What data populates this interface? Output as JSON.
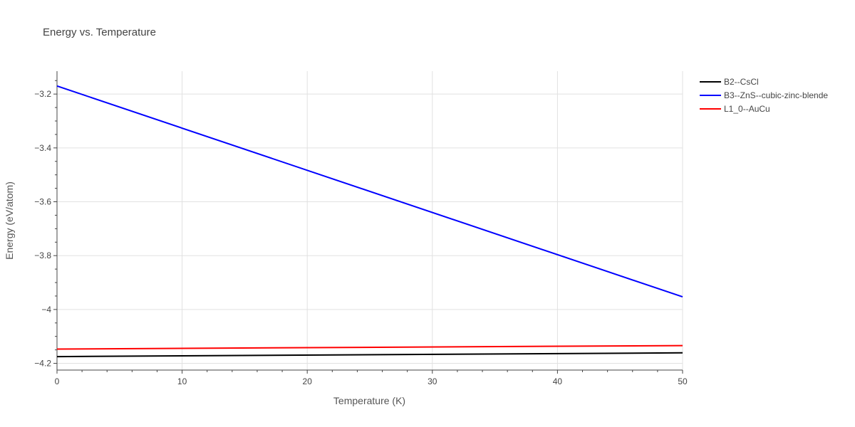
{
  "chart_data": {
    "type": "line",
    "title": "Energy vs. Temperature",
    "xlabel": "Temperature (K)",
    "ylabel": "Energy (eV/atom)",
    "xlim": [
      0,
      50
    ],
    "ylim": [
      -4.225,
      -3.115
    ],
    "x_ticks": [
      0,
      10,
      20,
      30,
      40,
      50
    ],
    "x_tick_labels": [
      "0",
      "10",
      "20",
      "30",
      "40",
      "50"
    ],
    "y_ticks": [
      -3.2,
      -3.4,
      -3.6,
      -3.8,
      -4.0,
      -4.2
    ],
    "y_tick_labels": [
      "−3.2",
      "−3.4",
      "−3.6",
      "−3.8",
      "−4",
      "−4.2"
    ],
    "grid": true,
    "legend_position": "top-right, outside plot",
    "series": [
      {
        "name": "B2--CsCl",
        "color": "#000000",
        "x": [
          0,
          50
        ],
        "y": [
          -4.175,
          -4.161
        ]
      },
      {
        "name": "B3--ZnS--cubic-zinc-blende",
        "color": "#0000ff",
        "x": [
          0,
          50
        ],
        "y": [
          -3.17,
          -3.953
        ]
      },
      {
        "name": "L1_0--AuCu",
        "color": "#ff0000",
        "x": [
          0,
          50
        ],
        "y": [
          -4.147,
          -4.134
        ]
      }
    ]
  }
}
